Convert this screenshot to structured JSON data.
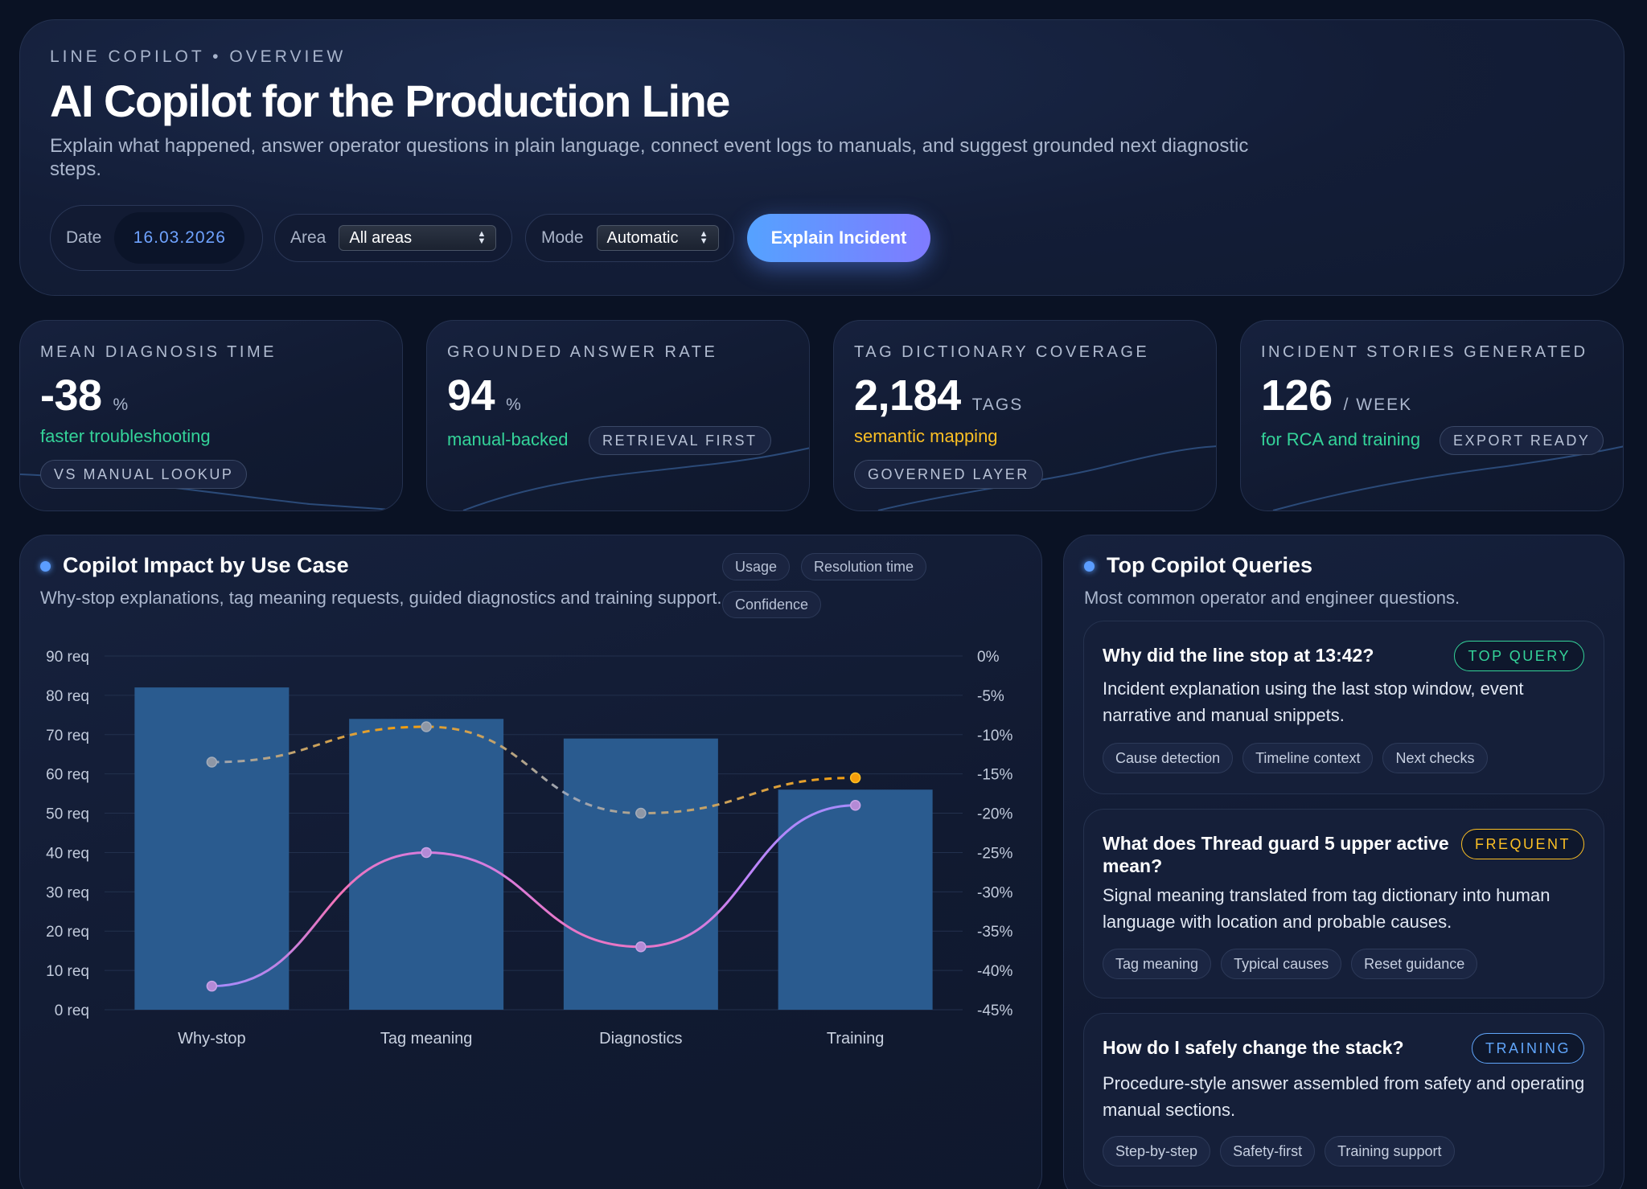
{
  "hero": {
    "eyebrow": "LINE COPILOT • OVERVIEW",
    "title": "AI Copilot for the Production Line",
    "subtitle": "Explain what happened, answer operator questions in plain language, connect event logs to manuals, and suggest grounded next diagnostic steps.",
    "date_label": "Date",
    "date_value": "16.03.2026",
    "area_label": "Area",
    "area_value": "All areas",
    "mode_label": "Mode",
    "mode_value": "Automatic",
    "explain_button": "Explain Incident"
  },
  "kpis": [
    {
      "label": "MEAN DIAGNOSIS TIME",
      "value": "-38",
      "unit": "%",
      "note": "faster troubleshooting",
      "note_color": "#34d399",
      "tag": "VS MANUAL LOOKUP"
    },
    {
      "label": "GROUNDED ANSWER RATE",
      "value": "94",
      "unit": "%",
      "note": "manual-backed",
      "note_color": "#34d399",
      "tag": "RETRIEVAL FIRST"
    },
    {
      "label": "TAG DICTIONARY COVERAGE",
      "value": "2,184",
      "unit": "TAGS",
      "note": "semantic mapping",
      "note_color": "#fbbf24",
      "tag": "GOVERNED LAYER"
    },
    {
      "label": "INCIDENT STORIES GENERATED",
      "value": "126",
      "unit": "/ WEEK",
      "note": "for RCA and training",
      "note_color": "#34d399",
      "tag": "EXPORT READY"
    }
  ],
  "impact": {
    "title": "Copilot Impact by Use Case",
    "subtitle": "Why-stop explanations, tag meaning requests, guided diagnostics and training support.",
    "legend": [
      "Usage",
      "Resolution time",
      "Confidence"
    ]
  },
  "chart_data": {
    "type": "bar",
    "categories": [
      "Why-stop",
      "Tag meaning",
      "Diagnostics",
      "Training"
    ],
    "series": [
      {
        "name": "Usage",
        "type": "bar",
        "axis": "left",
        "values": [
          82,
          74,
          69,
          56
        ],
        "color": "#2a5b8f"
      },
      {
        "name": "Resolution time",
        "type": "line",
        "axis": "right",
        "values": [
          -42,
          -25,
          -37,
          -19
        ],
        "color": "#f472b6"
      },
      {
        "name": "Confidence",
        "type": "line",
        "axis": "right",
        "dashed": true,
        "values": [
          -13.5,
          -9,
          -20,
          -15.5
        ],
        "color": "#f59e0b"
      }
    ],
    "y_left": {
      "ticks": [
        "0 req",
        "10 req",
        "20 req",
        "30 req",
        "40 req",
        "50 req",
        "60 req",
        "70 req",
        "80 req",
        "90 req"
      ],
      "range": [
        0,
        90
      ]
    },
    "y_right": {
      "ticks": [
        "-45%",
        "-40%",
        "-35%",
        "-30%",
        "-25%",
        "-20%",
        "-15%",
        "-10%",
        "-5%",
        "0%"
      ],
      "range": [
        -45,
        0
      ]
    },
    "grid": true
  },
  "queries": {
    "title": "Top Copilot Queries",
    "subtitle": "Most common operator and engineer questions.",
    "items": [
      {
        "title": "Why did the line stop at 13:42?",
        "badge": "TOP QUERY",
        "badge_color": "#34d399",
        "desc": "Incident explanation using the last stop window, event narrative and manual snippets.",
        "chips": [
          "Cause detection",
          "Timeline context",
          "Next checks"
        ]
      },
      {
        "title": "What does Thread guard 5 upper active mean?",
        "badge": "FREQUENT",
        "badge_color": "#fbbf24",
        "desc": "Signal meaning translated from tag dictionary into human language with location and probable causes.",
        "chips": [
          "Tag meaning",
          "Typical causes",
          "Reset guidance"
        ]
      },
      {
        "title": "How do I safely change the stack?",
        "badge": "TRAINING",
        "badge_color": "#60a5fa",
        "desc": "Procedure-style answer assembled from safety and operating manual sections.",
        "chips": [
          "Step-by-step",
          "Safety-first",
          "Training support"
        ]
      }
    ]
  }
}
